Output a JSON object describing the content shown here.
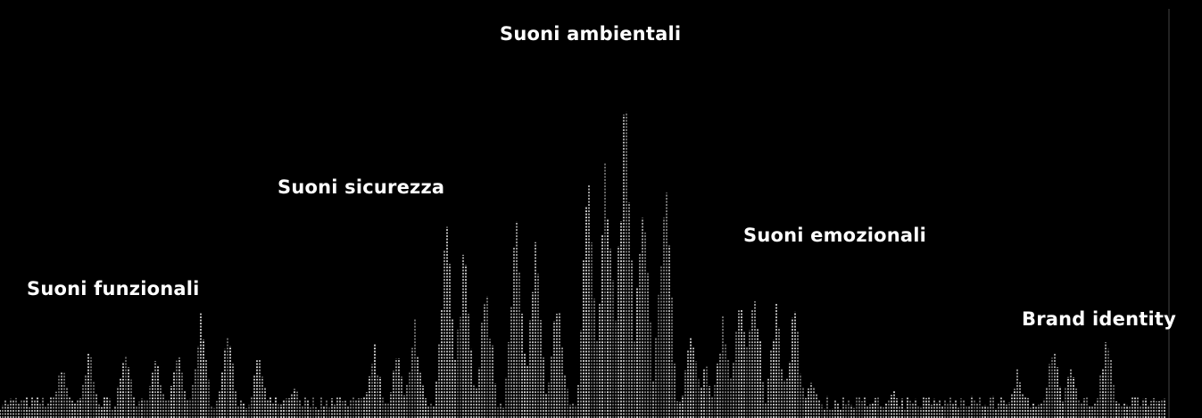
{
  "labels": [
    "Suoni funzionali",
    "Suoni sicurezza",
    "Suoni ambientali",
    "Suoni emozionali",
    "Brand identity"
  ]
}
